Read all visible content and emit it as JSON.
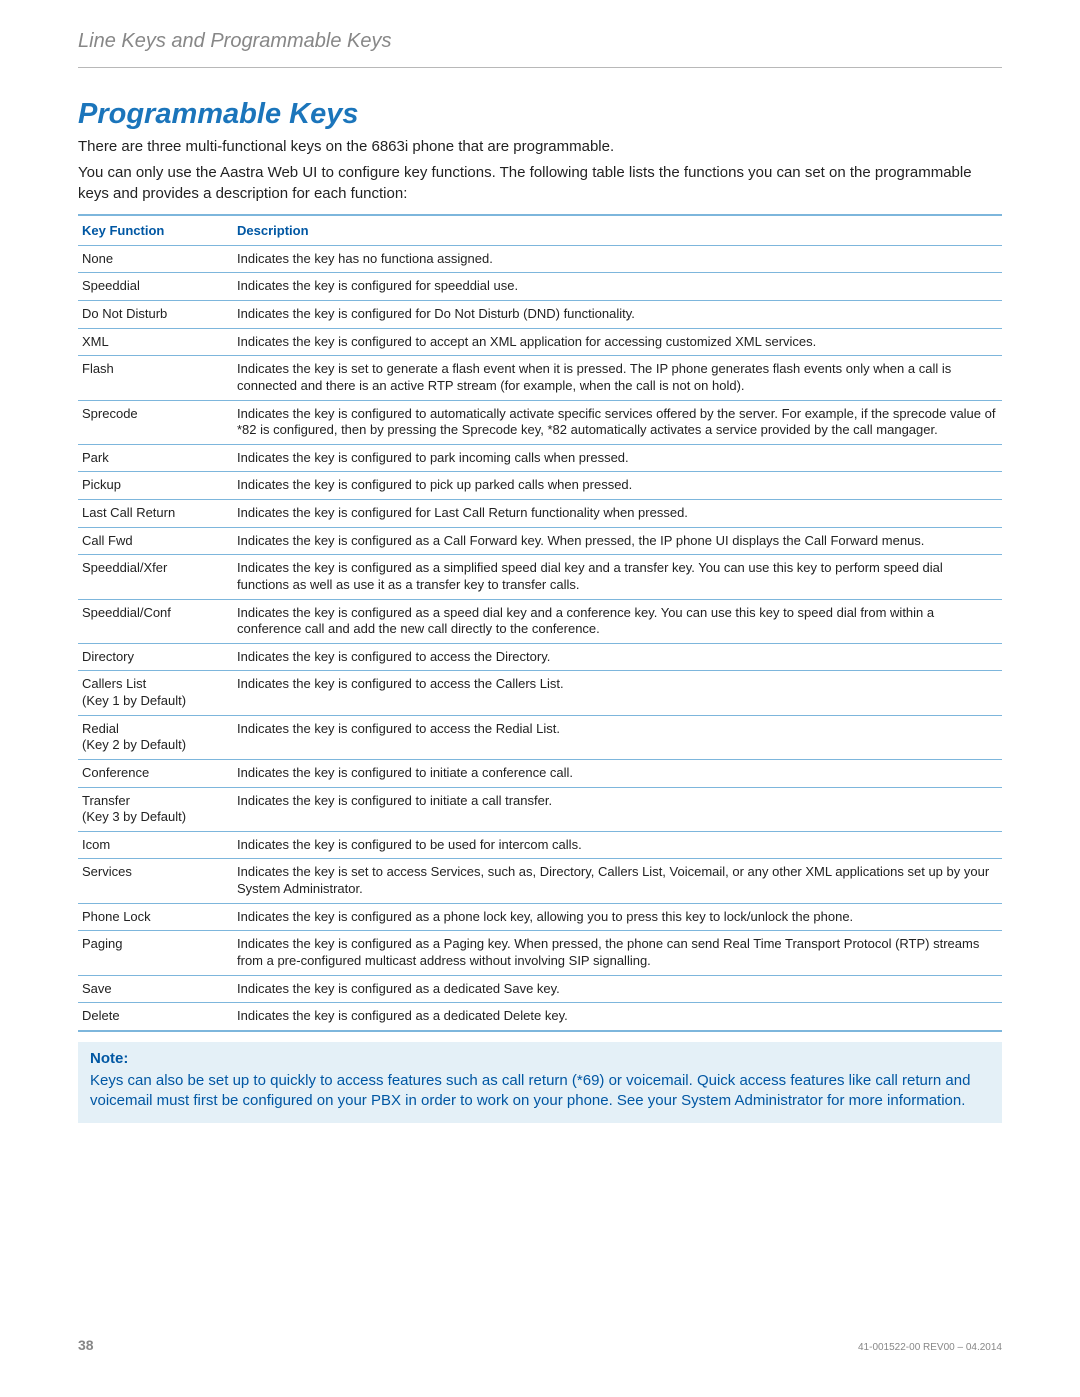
{
  "header": {
    "section_title": "Line Keys and Programmable Keys"
  },
  "main": {
    "title": "Programmable Keys",
    "intro1": "There are three multi-functional keys on the 6863i phone that are programmable.",
    "intro2": "You can only use the Aastra Web UI to configure key functions. The following table lists the functions you can set on the programmable keys and provides a description for each function:"
  },
  "table": {
    "header_func": "Key Function",
    "header_desc": "Description",
    "rows": [
      {
        "func": "None",
        "desc": "Indicates the key has no functiona assigned."
      },
      {
        "func": "Speeddial",
        "desc": "Indicates the key is configured for speeddial use."
      },
      {
        "func": "Do Not Disturb",
        "desc": "Indicates the key is configured for Do Not Disturb (DND) functionality."
      },
      {
        "func": "XML",
        "desc": "Indicates the key is configured to accept an XML application for accessing customized XML services."
      },
      {
        "func": "Flash",
        "desc": "Indicates the key is set to generate a flash event when it is pressed. The IP phone generates flash events only when a call is connected and there is an active RTP stream (for example, when the call is not on hold)."
      },
      {
        "func": "Sprecode",
        "desc": "Indicates the key is configured to automatically activate specific services offered by the server. For example, if the sprecode value of *82 is configured, then by pressing the Sprecode key, *82 automatically activates a service provided by the call mangager."
      },
      {
        "func": "Park",
        "desc": "Indicates the key is configured to park incoming calls when pressed."
      },
      {
        "func": "Pickup",
        "desc": "Indicates the key is configured to pick up parked calls when pressed."
      },
      {
        "func": "Last Call Return",
        "desc": "Indicates the key is configured for Last Call Return functionality when pressed."
      },
      {
        "func": "Call Fwd",
        "desc": "Indicates the key is configured as a Call Forward key. When pressed, the IP phone UI displays the Call Forward menus."
      },
      {
        "func": "Speeddial/Xfer",
        "desc": "Indicates the key is configured as a simplified speed dial key and a transfer key. You can use this key to perform speed dial functions as well as use it as a transfer key to transfer calls."
      },
      {
        "func": "Speeddial/Conf",
        "desc": "Indicates the key is configured as a speed dial key and a conference key. You can use this key to speed dial from within a conference call and add the new call directly to the conference."
      },
      {
        "func": "Directory",
        "desc": "Indicates the key is configured to access the Directory."
      },
      {
        "func": "Callers List\n(Key 1 by Default)",
        "desc": "Indicates the key is configured to access the Callers List."
      },
      {
        "func": "Redial\n(Key 2 by Default)",
        "desc": "Indicates the key is configured to access the Redial List."
      },
      {
        "func": "Conference",
        "desc": "Indicates the key is configured to initiate a conference call."
      },
      {
        "func": "Transfer\n(Key 3 by Default)",
        "desc": "Indicates the key is configured to initiate a call transfer."
      },
      {
        "func": "Icom",
        "desc": "Indicates the key is configured to be used for intercom calls."
      },
      {
        "func": "Services",
        "desc": "Indicates the key is set to access Services, such as, Directory, Callers List, Voicemail, or any other XML applications set up by your System Administrator."
      },
      {
        "func": "Phone Lock",
        "desc": "Indicates the key is configured as a phone lock key, allowing you to press this key to lock/unlock the phone."
      },
      {
        "func": "Paging",
        "desc": "Indicates the key is configured as a Paging key. When pressed, the phone can send Real Time Transport Protocol (RTP) streams from a pre-configured multicast address without involving SIP signalling."
      },
      {
        "func": "Save",
        "desc": "Indicates the key is configured as a dedicated Save key."
      },
      {
        "func": "Delete",
        "desc": "Indicates the key is configured as a dedicated Delete key."
      }
    ]
  },
  "note": {
    "label": "Note:",
    "text": "Keys can also be set up to quickly to access features such as call return (*69) or voicemail. Quick access features like call return and voicemail must first be configured on your PBX in order to work on your phone. See your System Administrator for more information."
  },
  "footer": {
    "page": "38",
    "docid": "41-001522-00 REV00 – 04.2014"
  }
}
